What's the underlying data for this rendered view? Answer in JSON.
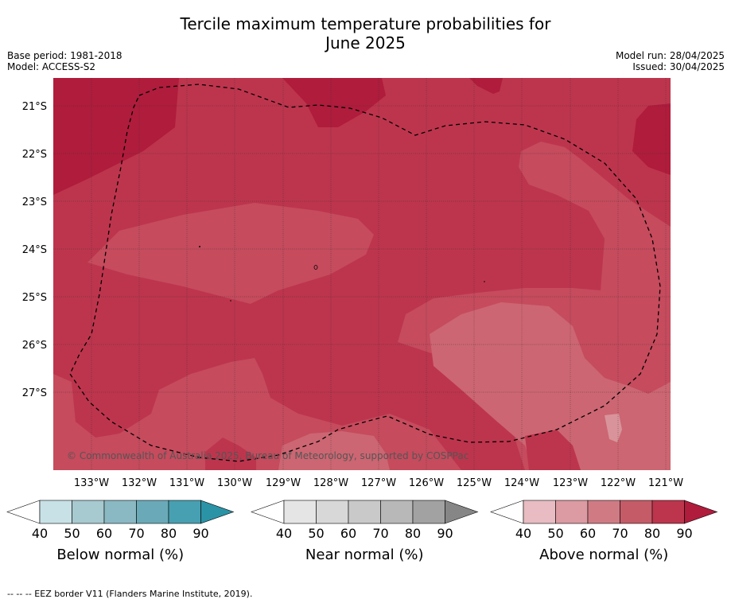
{
  "title_line1": "Tercile maximum temperature probabilities for",
  "title_line2": "June 2025",
  "base_period": "Base period: 1981-2018",
  "model": "Model: ACCESS-S2",
  "model_run": "Model run: 28/04/2025",
  "issued": "Issued: 30/04/2025",
  "copyright": "© Commonwealth of Australia 2025, Bureau of Meteorology, supported by COSPPac",
  "footer": "--  --  -- EEZ border V11 (Flanders Marine Institute, 2019).",
  "map": {
    "lat_labels": [
      "21°S",
      "22°S",
      "23°S",
      "24°S",
      "25°S",
      "26°S",
      "27°S"
    ],
    "lon_labels": [
      "133°W",
      "132°W",
      "131°W",
      "130°W",
      "129°W",
      "128°W",
      "127°W",
      "126°W",
      "125°W",
      "124°W",
      "123°W",
      "122°W",
      "121°W"
    ],
    "colors": {
      "above_90": "#b01c3c",
      "above_80": "#bd354d",
      "above_70": "#c54b5d",
      "above_60": "#cc6672",
      "above_50": "#d9949b"
    }
  },
  "legends": [
    {
      "title": "Below normal (%)",
      "ticks": [
        "40",
        "50",
        "60",
        "70",
        "80",
        "90"
      ],
      "colors": [
        "#ffffff",
        "#c8e1e6",
        "#a7c9d0",
        "#8ab9c4",
        "#6aaab8",
        "#47a0b1",
        "#2b93a6"
      ]
    },
    {
      "title": "Near normal (%)",
      "ticks": [
        "40",
        "50",
        "60",
        "70",
        "80",
        "90"
      ],
      "colors": [
        "#ffffff",
        "#e5e5e5",
        "#d8d8d8",
        "#c9c9c9",
        "#b8b8b8",
        "#a2a2a2",
        "#868686"
      ]
    },
    {
      "title": "Above normal (%)",
      "ticks": [
        "40",
        "50",
        "60",
        "70",
        "80",
        "90"
      ],
      "colors": [
        "#ffffff",
        "#e8bcc2",
        "#dc9aa2",
        "#d07b84",
        "#c65b68",
        "#bd354d",
        "#b01c3c"
      ]
    }
  ]
}
